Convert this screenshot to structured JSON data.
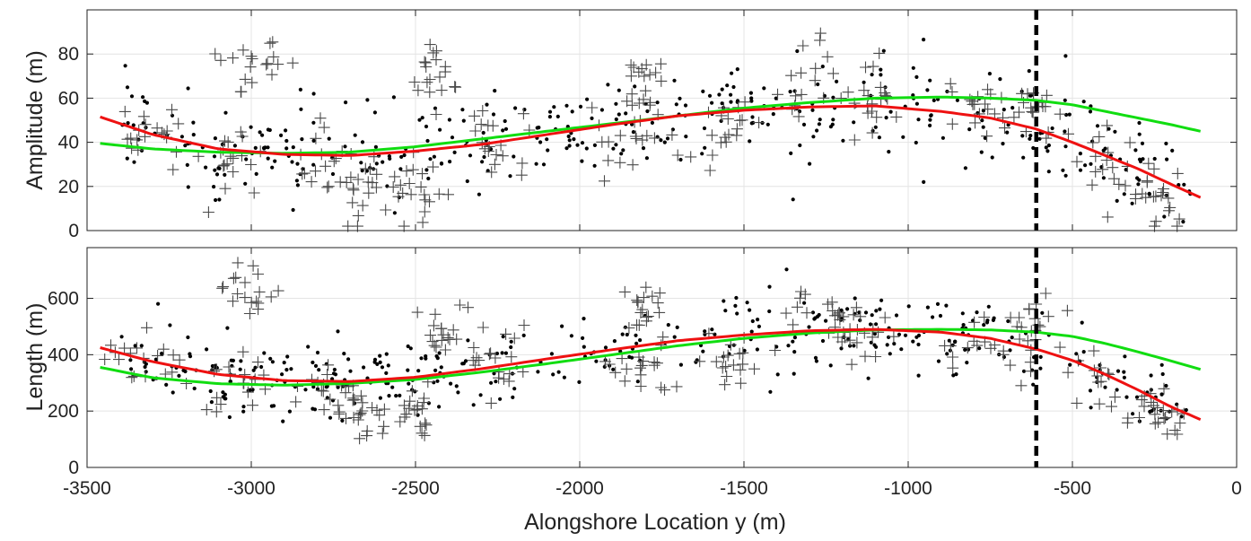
{
  "colors": {
    "red_fit": "#ee1111",
    "green_fit": "#11dd11",
    "points": "#000000",
    "plus": "#4a4a4a",
    "grid": "#e4e4e4",
    "frame": "#222222"
  },
  "chart_data": [
    {
      "type": "scatter",
      "ylabel": "Amplitude (m)",
      "xlim": [
        -3500,
        0
      ],
      "ylim": [
        0,
        100
      ],
      "yticks": [
        0,
        20,
        40,
        60,
        80
      ],
      "grid": true,
      "show_xtick_labels": false,
      "vertical_line_x": -610,
      "series": [
        {
          "marker": "fit-red",
          "x": [
            -3460,
            -3300,
            -3100,
            -2900,
            -2700,
            -2500,
            -2300,
            -2100,
            -1900,
            -1700,
            -1500,
            -1300,
            -1100,
            -900,
            -750,
            -610,
            -500,
            -400,
            -300,
            -200,
            -110
          ],
          "values": [
            51.5,
            43.5,
            37,
            34.5,
            34,
            36,
            39,
            43.5,
            48,
            52,
            54.5,
            56,
            56.5,
            54,
            51,
            46,
            40,
            34,
            28,
            21,
            15
          ]
        },
        {
          "marker": "fit-green",
          "x": [
            -3460,
            -3300,
            -3100,
            -2900,
            -2700,
            -2500,
            -2300,
            -2100,
            -1900,
            -1700,
            -1500,
            -1300,
            -1100,
            -900,
            -750,
            -610,
            -500,
            -400,
            -300,
            -200,
            -110
          ],
          "values": [
            39.5,
            37,
            35.5,
            35,
            35.5,
            38,
            41.5,
            45,
            48.5,
            52,
            55.5,
            58,
            60,
            60.5,
            60,
            59,
            57,
            54,
            51,
            48,
            45
          ]
        },
        {
          "marker": "dot",
          "seed": 11,
          "count": 400,
          "x_range": [
            -3400,
            -140
          ],
          "trend": "red",
          "spread": 11,
          "min": 2,
          "max": 93,
          "clusters": []
        },
        {
          "marker": "plus",
          "seed": 29,
          "count": 330,
          "trend": "red",
          "spread": 8,
          "min": 2,
          "max": 93,
          "clusters": [
            {
              "x": -3320,
              "w": 60,
              "offset": 0
            },
            {
              "x": -3050,
              "w": 45,
              "offset": -3
            },
            {
              "x": -3000,
              "w": 60,
              "offset": 40
            },
            {
              "x": -2780,
              "w": 55,
              "offset": -4
            },
            {
              "x": -2650,
              "w": 55,
              "offset": -16
            },
            {
              "x": -2500,
              "w": 45,
              "offset": -20
            },
            {
              "x": -2420,
              "w": 40,
              "offset": 35
            },
            {
              "x": -2250,
              "w": 55,
              "offset": 2
            },
            {
              "x": -1830,
              "w": 70,
              "offset": -8
            },
            {
              "x": -1800,
              "w": 40,
              "offset": 20
            },
            {
              "x": -1550,
              "w": 50,
              "offset": -8
            },
            {
              "x": -1270,
              "w": 70,
              "offset": 10
            },
            {
              "x": -1130,
              "w": 50,
              "offset": 5
            },
            {
              "x": -760,
              "w": 70,
              "offset": 3
            },
            {
              "x": -620,
              "w": 40,
              "offset": 10
            },
            {
              "x": -380,
              "w": 70,
              "offset": -3
            },
            {
              "x": -230,
              "w": 40,
              "offset": -8
            }
          ]
        }
      ]
    },
    {
      "type": "scatter",
      "xlabel": "Alongshore Location y (m)",
      "ylabel": "Length (m)",
      "xlim": [
        -3500,
        0
      ],
      "ylim": [
        0,
        780
      ],
      "xticks": [
        -3500,
        -3000,
        -2500,
        -2000,
        -1500,
        -1000,
        -500,
        0
      ],
      "yticks": [
        0,
        200,
        400,
        600
      ],
      "grid": true,
      "show_xtick_labels": true,
      "vertical_line_x": -610,
      "series": [
        {
          "marker": "fit-red",
          "x": [
            -3460,
            -3300,
            -3100,
            -2900,
            -2700,
            -2500,
            -2300,
            -2100,
            -1900,
            -1700,
            -1500,
            -1300,
            -1100,
            -900,
            -750,
            -610,
            -500,
            -400,
            -300,
            -200,
            -110
          ],
          "values": [
            425,
            375,
            330,
            308,
            305,
            320,
            350,
            385,
            418,
            450,
            470,
            485,
            490,
            480,
            458,
            420,
            380,
            330,
            275,
            215,
            170
          ]
        },
        {
          "marker": "fit-green",
          "x": [
            -3460,
            -3300,
            -3100,
            -2900,
            -2700,
            -2500,
            -2300,
            -2100,
            -1900,
            -1700,
            -1500,
            -1300,
            -1100,
            -900,
            -750,
            -610,
            -500,
            -400,
            -300,
            -200,
            -110
          ],
          "values": [
            355,
            318,
            297,
            292,
            298,
            312,
            338,
            368,
            400,
            432,
            458,
            477,
            488,
            490,
            488,
            480,
            465,
            440,
            410,
            378,
            348
          ]
        },
        {
          "marker": "dot",
          "seed": 47,
          "count": 400,
          "x_range": [
            -3400,
            -140
          ],
          "trend": "red",
          "spread": 70,
          "min": 100,
          "max": 770,
          "clusters": []
        },
        {
          "marker": "plus",
          "seed": 83,
          "count": 330,
          "trend": "red",
          "spread": 55,
          "min": 100,
          "max": 760,
          "clusters": [
            {
              "x": -3320,
              "w": 60,
              "offset": -10
            },
            {
              "x": -3050,
              "w": 45,
              "offset": -30
            },
            {
              "x": -3020,
              "w": 50,
              "offset": 330
            },
            {
              "x": -2780,
              "w": 55,
              "offset": -40
            },
            {
              "x": -2650,
              "w": 55,
              "offset": -120
            },
            {
              "x": -2500,
              "w": 45,
              "offset": -130
            },
            {
              "x": -2420,
              "w": 45,
              "offset": 150
            },
            {
              "x": -2250,
              "w": 55,
              "offset": 30
            },
            {
              "x": -1830,
              "w": 70,
              "offset": -90
            },
            {
              "x": -1800,
              "w": 40,
              "offset": 120
            },
            {
              "x": -1550,
              "w": 50,
              "offset": -60
            },
            {
              "x": -1270,
              "w": 70,
              "offset": 60
            },
            {
              "x": -1150,
              "w": 50,
              "offset": -20
            },
            {
              "x": -760,
              "w": 70,
              "offset": -20
            },
            {
              "x": -620,
              "w": 40,
              "offset": 90
            },
            {
              "x": -380,
              "w": 70,
              "offset": -30
            },
            {
              "x": -220,
              "w": 40,
              "offset": -40
            }
          ]
        }
      ]
    }
  ]
}
